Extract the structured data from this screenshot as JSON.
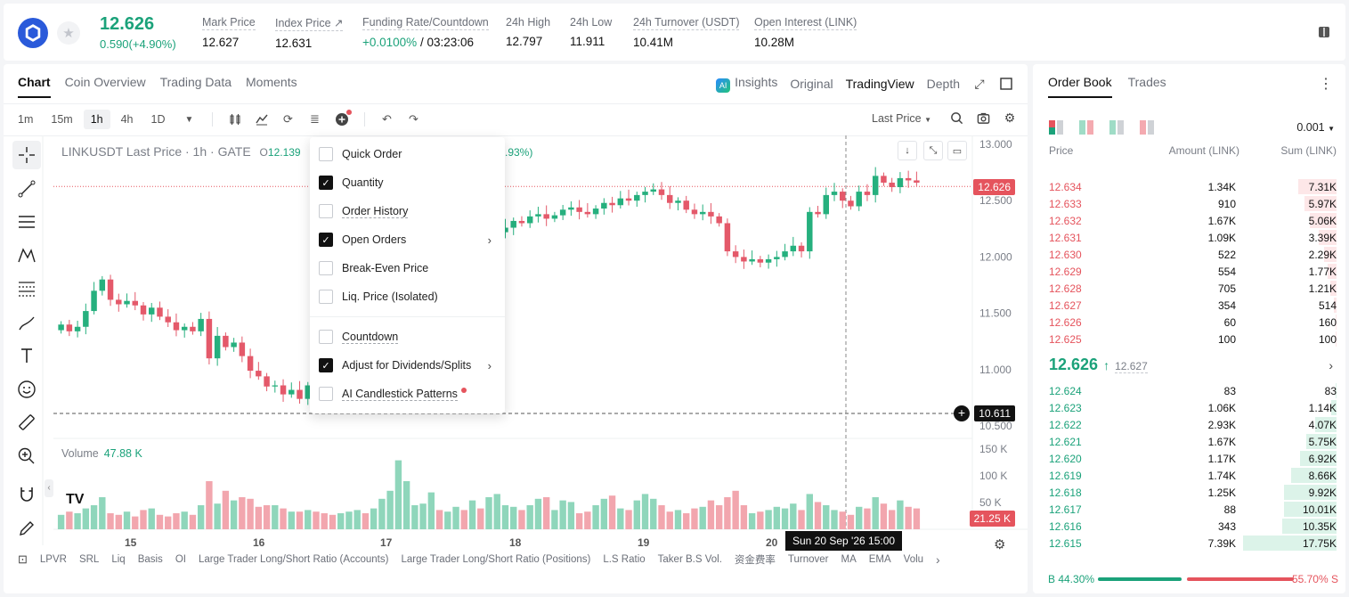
{
  "header": {
    "last_price": "12.626",
    "change": "0.590(+4.90%)",
    "stats": [
      {
        "label": "Mark Price",
        "value": "12.627"
      },
      {
        "label": "Index Price ↗",
        "value": "12.631"
      },
      {
        "label": "Funding Rate/Countdown",
        "value_green": "+0.0100%",
        "value": " / 03:23:06"
      },
      {
        "label": "24h High",
        "value": "12.797"
      },
      {
        "label": "24h Low",
        "value": "11.911"
      },
      {
        "label": "24h Turnover (USDT)",
        "value": "10.41M"
      },
      {
        "label": "Open Interest (LINK)",
        "value": "10.28M"
      }
    ]
  },
  "chart_panel": {
    "tabs": [
      "Chart",
      "Coin Overview",
      "Trading Data",
      "Moments"
    ],
    "view_tabs": {
      "ai_badge": "AI",
      "insights": "Insights",
      "original": "Original",
      "tradingview": "TradingView",
      "depth": "Depth"
    },
    "timeframes": [
      "1m",
      "15m",
      "1h",
      "4h",
      "1D"
    ],
    "price_source": "Last Price",
    "legend": "LINKUSDT Last Price · 1h · GATE",
    "legend_o": "O",
    "legend_o_value": "12.139",
    "legend_change": ".93%)",
    "volume_label": "Volume",
    "volume_value": "47.88 K",
    "tv_logo": "TV",
    "crosshair_time": "Sun 20 Sep '26   15:00",
    "bottom_indicators": [
      "LPVR",
      "SRL",
      "Liq",
      "Basis",
      "OI",
      "Large Trader Long/Short Ratio (Accounts)",
      "Large Trader Long/Short Ratio (Positions)",
      "L.S Ratio",
      "Taker B.S Vol.",
      "资金费率",
      "Turnover",
      "MA",
      "EMA",
      "Volu"
    ]
  },
  "dropdown": {
    "items": [
      {
        "label": "Quick Order",
        "checked": false
      },
      {
        "label": "Quantity",
        "checked": true
      },
      {
        "label": "Order History",
        "checked": false
      },
      {
        "label": "Open Orders",
        "checked": true,
        "submenu": true
      },
      {
        "label": "Break-Even Price",
        "checked": false
      },
      {
        "label": "Liq. Price (Isolated)",
        "checked": false
      },
      {
        "label": "Countdown",
        "checked": false
      },
      {
        "label": "Adjust for Dividends/Splits",
        "checked": true,
        "submenu": true
      },
      {
        "label": "AI Candlestick Patterns",
        "checked": false,
        "dot": true
      }
    ]
  },
  "chart_data": {
    "type": "candlestick",
    "symbol": "LINKUSDT",
    "interval": "1h",
    "price_axis": {
      "ticks": [
        "13.000",
        "12.500",
        "12.000",
        "11.500",
        "11.000",
        "10.500"
      ],
      "min": 10.5,
      "max": 13.0
    },
    "volume_axis": {
      "ticks": [
        "100 K",
        "50 K"
      ],
      "top_tick": "150 K"
    },
    "x_ticks": [
      "15",
      "16",
      "17",
      "18",
      "19",
      "20"
    ],
    "last_price_tag": "12.626",
    "crosshair_price_tag": "10.611",
    "volume_tag": "21.25 K",
    "closes": [
      11.4,
      11.34,
      11.38,
      11.52,
      11.7,
      11.8,
      11.62,
      11.58,
      11.61,
      11.57,
      11.49,
      11.55,
      11.47,
      11.42,
      11.35,
      11.38,
      11.34,
      11.45,
      11.1,
      11.3,
      11.2,
      11.24,
      11.12,
      10.99,
      10.94,
      10.85,
      10.86,
      10.78,
      10.82,
      10.74,
      10.86,
      10.79,
      10.72,
      10.71,
      10.76,
      10.8,
      10.84,
      10.81,
      10.83,
      11.1,
      11.3,
      11.45,
      11.6,
      11.7,
      11.8,
      11.9,
      11.86,
      11.95,
      12.02,
      11.95,
      12.05,
      11.88,
      12.1,
      12.22,
      12.26,
      12.32,
      12.3,
      12.36,
      12.38,
      12.34,
      12.37,
      12.42,
      12.44,
      12.4,
      12.38,
      12.43,
      12.48,
      12.46,
      12.52,
      12.5,
      12.55,
      12.58,
      12.6,
      12.55,
      12.48,
      12.5,
      12.42,
      12.38,
      12.4,
      12.36,
      12.3,
      12.05,
      12.0,
      11.96,
      11.98,
      11.95,
      11.98,
      12.0,
      12.05,
      12.1,
      12.05,
      12.4,
      12.38,
      12.55,
      12.58,
      12.5,
      12.45,
      12.58,
      12.55,
      12.72,
      12.66,
      12.62,
      12.7,
      12.68,
      12.66
    ],
    "volumes": [
      18,
      22,
      20,
      26,
      30,
      40,
      20,
      18,
      22,
      16,
      24,
      26,
      18,
      16,
      20,
      22,
      18,
      30,
      60,
      32,
      48,
      36,
      40,
      38,
      28,
      30,
      30,
      26,
      22,
      22,
      24,
      22,
      20,
      18,
      20,
      22,
      24,
      20,
      26,
      38,
      48,
      86,
      60,
      30,
      32,
      46,
      24,
      22,
      28,
      24,
      36,
      26,
      40,
      44,
      30,
      28,
      24,
      30,
      38,
      40,
      24,
      36,
      34,
      20,
      22,
      30,
      38,
      42,
      26,
      24,
      36,
      44,
      38,
      30,
      22,
      24,
      20,
      26,
      28,
      36,
      30,
      40,
      48,
      30,
      20,
      22,
      24,
      28,
      26,
      32,
      24,
      44,
      34,
      30,
      24,
      22,
      18,
      28,
      26,
      40,
      32,
      24,
      36,
      28,
      26
    ]
  },
  "order_book": {
    "tabs": [
      "Order Book",
      "Trades"
    ],
    "precision": "0.001",
    "headers": {
      "price": "Price",
      "amount": "Amount (LINK)",
      "sum": "Sum (LINK)"
    },
    "asks": [
      {
        "price": "12.634",
        "amount": "1.34K",
        "sum": "7.31K",
        "depth": 0.41
      },
      {
        "price": "12.633",
        "amount": "910",
        "sum": "5.97K",
        "depth": 0.34
      },
      {
        "price": "12.632",
        "amount": "1.67K",
        "sum": "5.06K",
        "depth": 0.29
      },
      {
        "price": "12.631",
        "amount": "1.09K",
        "sum": "3.39K",
        "depth": 0.19
      },
      {
        "price": "12.630",
        "amount": "522",
        "sum": "2.29K",
        "depth": 0.13
      },
      {
        "price": "12.629",
        "amount": "554",
        "sum": "1.77K",
        "depth": 0.1
      },
      {
        "price": "12.628",
        "amount": "705",
        "sum": "1.21K",
        "depth": 0.07
      },
      {
        "price": "12.627",
        "amount": "354",
        "sum": "514",
        "depth": 0.03
      },
      {
        "price": "12.626",
        "amount": "60",
        "sum": "160",
        "depth": 0.01
      },
      {
        "price": "12.625",
        "amount": "100",
        "sum": "100",
        "depth": 0.01
      }
    ],
    "mid_price": "12.626",
    "mid_arrow": "↑",
    "mark_price": "12.627",
    "bids": [
      {
        "price": "12.624",
        "amount": "83",
        "sum": "83",
        "depth": 0.005
      },
      {
        "price": "12.623",
        "amount": "1.06K",
        "sum": "1.14K",
        "depth": 0.06
      },
      {
        "price": "12.622",
        "amount": "2.93K",
        "sum": "4.07K",
        "depth": 0.23
      },
      {
        "price": "12.621",
        "amount": "1.67K",
        "sum": "5.75K",
        "depth": 0.32
      },
      {
        "price": "12.620",
        "amount": "1.17K",
        "sum": "6.92K",
        "depth": 0.39
      },
      {
        "price": "12.619",
        "amount": "1.74K",
        "sum": "8.66K",
        "depth": 0.49
      },
      {
        "price": "12.618",
        "amount": "1.25K",
        "sum": "9.92K",
        "depth": 0.56
      },
      {
        "price": "12.617",
        "amount": "88",
        "sum": "10.01K",
        "depth": 0.56
      },
      {
        "price": "12.616",
        "amount": "343",
        "sum": "10.35K",
        "depth": 0.58
      },
      {
        "price": "12.615",
        "amount": "7.39K",
        "sum": "17.75K",
        "depth": 1.0
      }
    ],
    "ratio": {
      "buy": "B 44.30%",
      "sell": "55.70% S",
      "buy_fraction": 0.443
    },
    "colors": {
      "green": "#1ba27a",
      "red": "#e5545d"
    }
  }
}
